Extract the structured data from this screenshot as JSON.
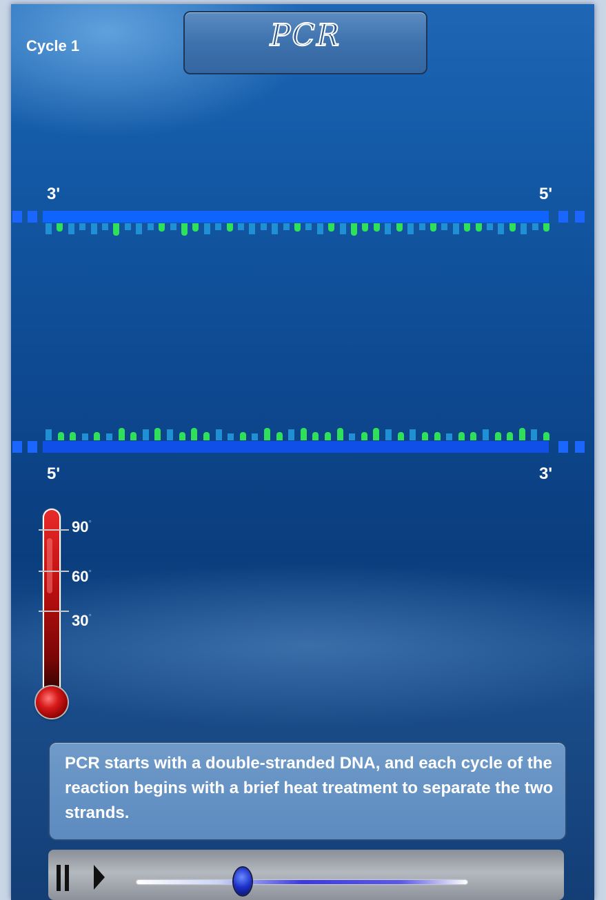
{
  "header": {
    "cycle_label": "Cycle 1",
    "title": "PCR"
  },
  "dna": {
    "top_strand": {
      "left_end_label": "3'",
      "right_end_label": "5'",
      "bases": [
        "B",
        "G",
        "B",
        "B",
        "B",
        "B",
        "G",
        "B",
        "B",
        "B",
        "G",
        "B",
        "G",
        "G",
        "B",
        "B",
        "G",
        "B",
        "B",
        "B",
        "B",
        "B",
        "G",
        "B",
        "B",
        "G",
        "B",
        "G",
        "G",
        "G",
        "B",
        "G",
        "B",
        "B",
        "G",
        "B",
        "B",
        "G",
        "G",
        "B",
        "B",
        "G",
        "B",
        "B",
        "G"
      ]
    },
    "bottom_strand": {
      "left_end_label": "5'",
      "right_end_label": "3'",
      "bases": [
        "B",
        "G",
        "G",
        "B",
        "G",
        "B",
        "G",
        "G",
        "B",
        "G",
        "B",
        "G",
        "G",
        "G",
        "B",
        "B",
        "G",
        "B",
        "G",
        "G",
        "B",
        "G",
        "G",
        "G",
        "G",
        "B",
        "G",
        "G",
        "B",
        "G",
        "B",
        "G",
        "G",
        "B",
        "G",
        "G",
        "B",
        "G",
        "G",
        "G",
        "B",
        "G"
      ]
    },
    "colors": {
      "backbone_top": "#0f63ff",
      "backbone_bottom": "#1150e8",
      "base_blue": "#1f8fd6",
      "base_green": "#2ee05a"
    }
  },
  "thermometer": {
    "ticks": [
      {
        "label": "90",
        "unit": "°"
      },
      {
        "label": "60",
        "unit": "°"
      },
      {
        "label": "30",
        "unit": "°"
      }
    ],
    "fill_fraction": 1.0
  },
  "caption": {
    "text": "PCR starts with a double-stranded DNA, and each cycle of the reaction begins with a brief heat treatment to separate the two strands."
  },
  "controls": {
    "pause_icon": "pause-icon",
    "play_icon": "play-icon",
    "progress_fraction": 0.32
  }
}
